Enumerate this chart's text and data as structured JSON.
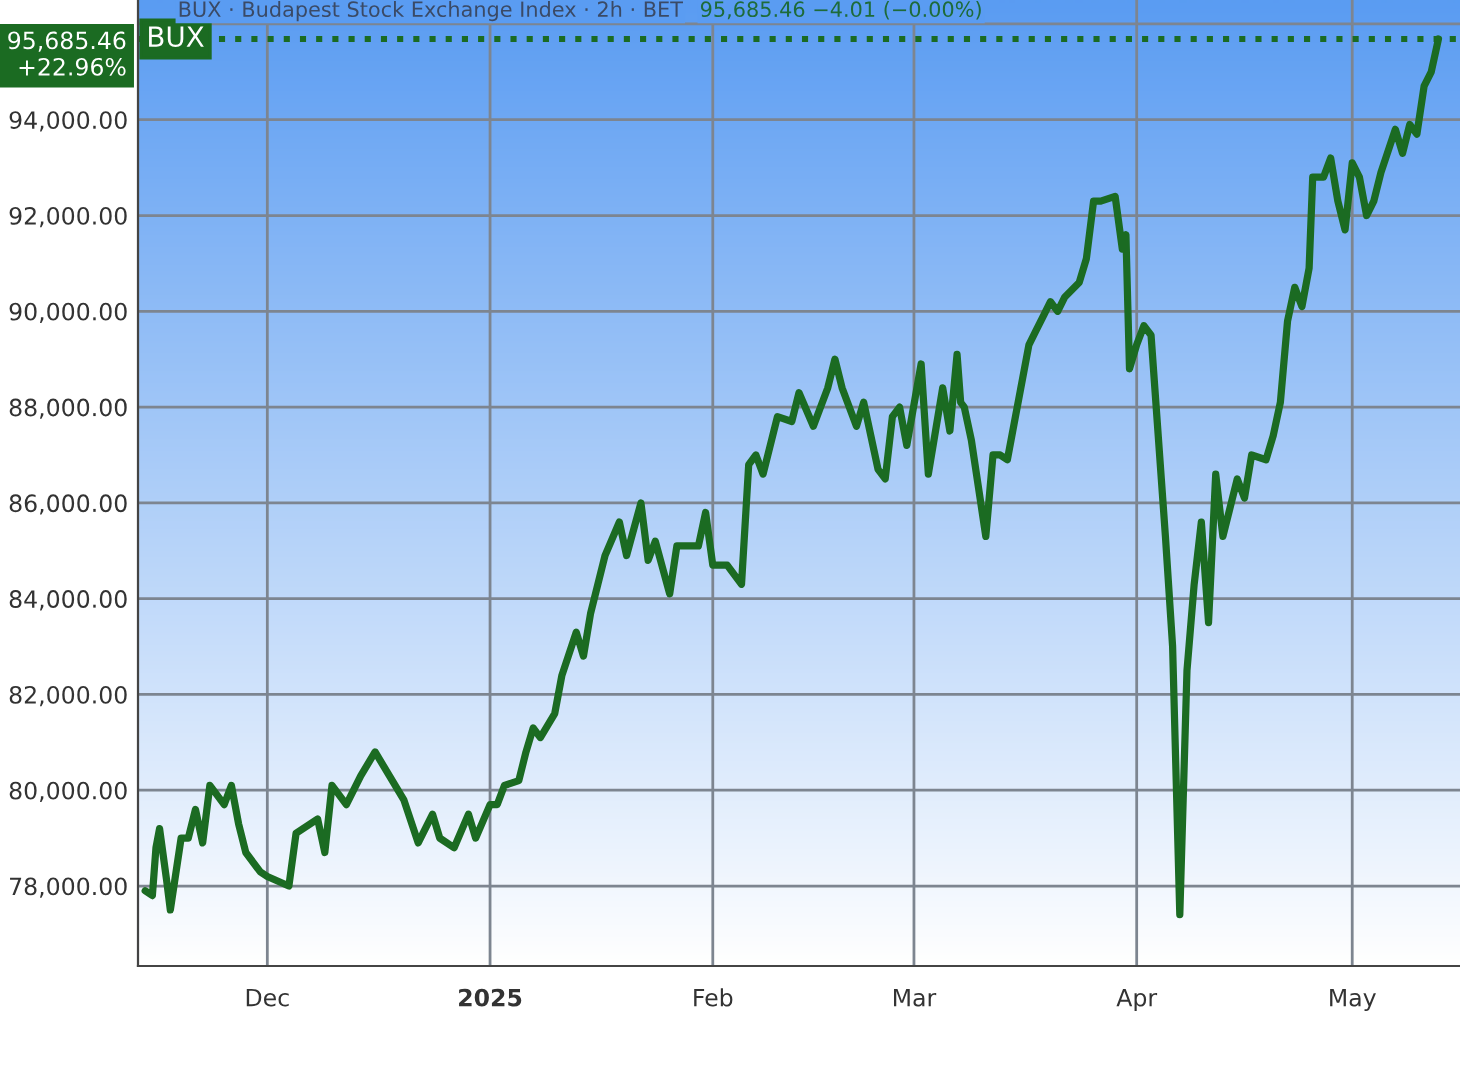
{
  "chart_data": {
    "type": "line",
    "title": "BUX · Budapest Stock Exchange Index · 2h · BET",
    "annotations": [
      "95,685.46 −4.01 (−0.00%)",
      "95,685.46\n+22.96%"
    ],
    "x": [
      "2024-11-14",
      "2024-11-15",
      "2024-11-15T12:00",
      "2024-11-16",
      "2024-11-17",
      "2024-11-17T12:00",
      "2024-11-19",
      "2024-11-20",
      "2024-11-21",
      "2024-11-22",
      "2024-11-23",
      "2024-11-25",
      "2024-11-26",
      "2024-11-27",
      "2024-11-28",
      "2024-11-30",
      "2024-12-01",
      "2024-12-04",
      "2024-12-05",
      "2024-12-07",
      "2024-12-08",
      "2024-12-09",
      "2024-12-10",
      "2024-12-12",
      "2024-12-14",
      "2024-12-16",
      "2024-12-18",
      "2024-12-20",
      "2024-12-22",
      "2024-12-24",
      "2024-12-25",
      "2024-12-27",
      "2024-12-29",
      "2024-12-30",
      "2025-01-01",
      "2025-01-02",
      "2025-01-03",
      "2025-01-05",
      "2025-01-06",
      "2025-01-07",
      "2025-01-08",
      "2025-01-10",
      "2025-01-11",
      "2025-01-13",
      "2025-01-14",
      "2025-01-15",
      "2025-01-16",
      "2025-01-17",
      "2025-01-19",
      "2025-01-20",
      "2025-01-22",
      "2025-01-23",
      "2025-01-24",
      "2025-01-26",
      "2025-01-27",
      "2025-01-30",
      "2025-01-31",
      "2025-02-01",
      "2025-02-03",
      "2025-02-05",
      "2025-02-06",
      "2025-02-07",
      "2025-02-08",
      "2025-02-10",
      "2025-02-12",
      "2025-02-13",
      "2025-02-15",
      "2025-02-17",
      "2025-02-18",
      "2025-02-19",
      "2025-02-21",
      "2025-02-22",
      "2025-02-24",
      "2025-02-25",
      "2025-02-26",
      "2025-02-27",
      "2025-02-28",
      "2025-03-02",
      "2025-03-03",
      "2025-03-05",
      "2025-03-06",
      "2025-03-07",
      "2025-03-07T12:00",
      "2025-03-08",
      "2025-03-09",
      "2025-03-11",
      "2025-03-12",
      "2025-03-13",
      "2025-03-14",
      "2025-03-15",
      "2025-03-16",
      "2025-03-17",
      "2025-03-18",
      "2025-03-19",
      "2025-03-20",
      "2025-03-21",
      "2025-03-22",
      "2025-03-24",
      "2025-03-25",
      "2025-03-26",
      "2025-03-27",
      "2025-03-29",
      "2025-03-30",
      "2025-03-30T12:00",
      "2025-03-31",
      "2025-04-01",
      "2025-04-02",
      "2025-04-03",
      "2025-04-05",
      "2025-04-06",
      "2025-04-07",
      "2025-04-08",
      "2025-04-09",
      "2025-04-10",
      "2025-04-11",
      "2025-04-12",
      "2025-04-13",
      "2025-04-15",
      "2025-04-16",
      "2025-04-17",
      "2025-04-19",
      "2025-04-20",
      "2025-04-21",
      "2025-04-22",
      "2025-04-23",
      "2025-04-24",
      "2025-04-25",
      "2025-04-25T12:00",
      "2025-04-27",
      "2025-04-28",
      "2025-04-29",
      "2025-04-30",
      "2025-05-01",
      "2025-05-02",
      "2025-05-03",
      "2025-05-04",
      "2025-05-05",
      "2025-05-07",
      "2025-05-08",
      "2025-05-09",
      "2025-05-10",
      "2025-05-11",
      "2025-05-12",
      "2025-05-13"
    ],
    "series": [
      {
        "color": "#1b6b22",
        "values": [
          77900,
          77800,
          78800,
          79200,
          78100,
          77500,
          79000,
          79000,
          79600,
          78900,
          80100,
          79700,
          80100,
          79300,
          78700,
          78300,
          78200,
          78000,
          79100,
          79300,
          79400,
          78700,
          80100,
          79700,
          80300,
          80800,
          80300,
          79800,
          78900,
          79500,
          79000,
          78800,
          79500,
          79000,
          79700,
          79700,
          80100,
          80200,
          80800,
          81300,
          81100,
          81600,
          82400,
          83300,
          82800,
          83700,
          84300,
          84900,
          85600,
          84900,
          86000,
          84800,
          85200,
          84100,
          85100,
          85100,
          85800,
          84700,
          84700,
          84300,
          86800,
          87000,
          86600,
          87800,
          87700,
          88300,
          87600,
          88400,
          89000,
          88400,
          87600,
          88100,
          86700,
          86500,
          87800,
          88000,
          87200,
          88900,
          86600,
          88400,
          87500,
          89100,
          88100,
          88000,
          87300,
          85300,
          87000,
          87000,
          86900,
          87700,
          88500,
          89300,
          89600,
          89900,
          90200,
          90000,
          90300,
          90600,
          91100,
          92300,
          92300,
          92400,
          91300,
          91600,
          88800,
          89300,
          89700,
          89500,
          85300,
          83000,
          77400,
          82500,
          84300,
          85600,
          83500,
          86600,
          85300,
          86500,
          86100,
          87000,
          86900,
          87400,
          88100,
          89800,
          90500,
          90100,
          90900,
          92800,
          92800,
          93200,
          92300,
          91700,
          93100,
          92800,
          92000,
          92300,
          92900,
          93800,
          93300,
          93900,
          93700,
          94700,
          95000,
          95685.46
        ]
      }
    ],
    "xlim": [
      "2024-11-13",
      "2025-05-16"
    ],
    "xticks": [
      {
        "value": "2024-12-01",
        "label": "Dec"
      },
      {
        "value": "2025-01-01",
        "label": "2025"
      },
      {
        "value": "2025-02-01",
        "label": "Feb"
      },
      {
        "value": "2025-03-01",
        "label": "Mar"
      },
      {
        "value": "2025-04-01",
        "label": "Apr"
      },
      {
        "value": "2025-05-01",
        "label": "May"
      }
    ],
    "ylim": [
      76330,
      96500
    ],
    "yticks": [
      {
        "value": 78000,
        "label": "78,000.00"
      },
      {
        "value": 80000,
        "label": "80,000.00"
      },
      {
        "value": 82000,
        "label": "82,000.00"
      },
      {
        "value": 84000,
        "label": "84,000.00"
      },
      {
        "value": 86000,
        "label": "86,000.00"
      },
      {
        "value": 88000,
        "label": "88,000.00"
      },
      {
        "value": 90000,
        "label": "90,000.00"
      },
      {
        "value": 92000,
        "label": "92,000.00"
      },
      {
        "value": 94000,
        "label": "94,000.00"
      },
      {
        "value": 96000,
        "label": null
      }
    ],
    "ref_lines": [
      {
        "axis": "y",
        "value": 95685.46,
        "label": "BUX",
        "color": "#1b6b22",
        "line_style": "dotted"
      }
    ],
    "grid": true,
    "legend": false,
    "marker": "none",
    "line_style": "solid"
  }
}
